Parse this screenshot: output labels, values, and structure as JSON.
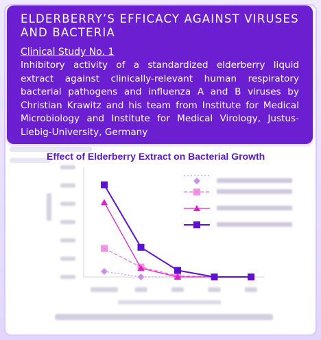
{
  "header": {
    "title": "ELDERBERRY’S EFFICACY AGAINST VIRUSES AND BACTERIA",
    "study_label": "Clinical Study No. 1",
    "description": "Inhibitory activity of a standardized elderberry liquid extract against clinically-relevant human respiratory bacterial pathogens and influenza A and B viruses by Christian Krawitz and his team from Institute for Medical Microbiology and Institute for Medical Virology, Justus-Liebig-University, Germany"
  },
  "colors": {
    "header_bg": "#6b1fd1",
    "accent": "#5a18c8",
    "series": [
      "#c890f0",
      "#f070d8",
      "#e020c8",
      "#6010d0"
    ]
  },
  "chart_data": {
    "type": "line",
    "title": "Effect of Elderberry Extract on Bacterial Growth",
    "x": [
      1,
      2,
      3,
      4,
      5
    ],
    "ylim": [
      0,
      100
    ],
    "grid": false,
    "legend_position": "right",
    "series": [
      {
        "marker": "diamond",
        "line": "dotted",
        "values": [
          5,
          0,
          0,
          0,
          0
        ]
      },
      {
        "marker": "square-open",
        "line": "dashed",
        "values": [
          26,
          9,
          1,
          0,
          0
        ]
      },
      {
        "marker": "triangle",
        "line": "solid",
        "values": [
          68,
          8,
          0,
          0,
          0
        ]
      },
      {
        "marker": "square",
        "line": "solid",
        "values": [
          84,
          27,
          6,
          0,
          0
        ]
      }
    ]
  }
}
